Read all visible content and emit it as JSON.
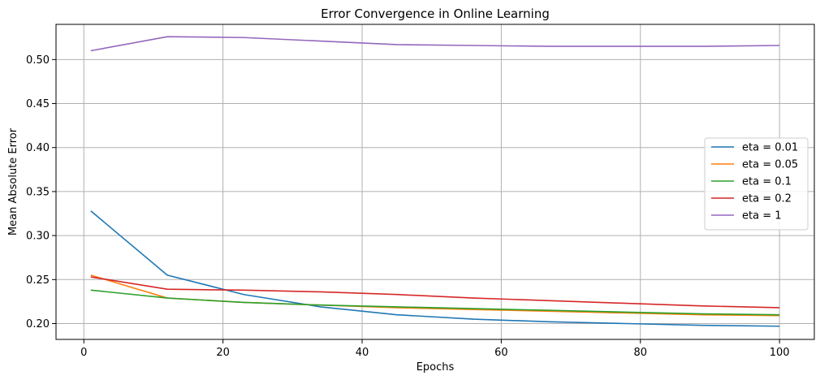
{
  "chart_data": {
    "type": "line",
    "title": "Error Convergence in Online Learning",
    "xlabel": "Epochs",
    "ylabel": "Mean Absolute Error",
    "xlim": [
      -4,
      105
    ],
    "ylim": [
      0.182,
      0.54
    ],
    "xticks": [
      0,
      20,
      40,
      60,
      80,
      100
    ],
    "yticks": [
      0.2,
      0.25,
      0.3,
      0.35,
      0.4,
      0.45,
      0.5
    ],
    "ytick_labels": [
      "0.20",
      "0.25",
      "0.30",
      "0.35",
      "0.40",
      "0.45",
      "0.50"
    ],
    "grid": true,
    "legend_position": "center-right",
    "x": [
      1,
      12,
      23,
      34,
      45,
      56,
      67,
      78,
      89,
      100
    ],
    "series": [
      {
        "name": "eta = 0.01",
        "color": "#1f77b4",
        "values": [
          0.328,
          0.255,
          0.233,
          0.219,
          0.21,
          0.205,
          0.202,
          0.2,
          0.198,
          0.197
        ]
      },
      {
        "name": "eta = 0.05",
        "color": "#ff7f0e",
        "values": [
          0.255,
          0.229,
          0.224,
          0.221,
          0.218,
          0.216,
          0.214,
          0.212,
          0.21,
          0.209
        ]
      },
      {
        "name": "eta = 0.1",
        "color": "#2ca02c",
        "values": [
          0.238,
          0.229,
          0.224,
          0.221,
          0.219,
          0.217,
          0.215,
          0.213,
          0.211,
          0.21
        ]
      },
      {
        "name": "eta = 0.2",
        "color": "#d62728",
        "values": [
          0.253,
          0.239,
          0.238,
          0.236,
          0.233,
          0.229,
          0.226,
          0.223,
          0.22,
          0.218
        ]
      },
      {
        "name": "eta = 1",
        "color": "#9467bd",
        "values": [
          0.51,
          0.526,
          0.525,
          0.521,
          0.517,
          0.516,
          0.515,
          0.515,
          0.515,
          0.516
        ]
      }
    ]
  }
}
